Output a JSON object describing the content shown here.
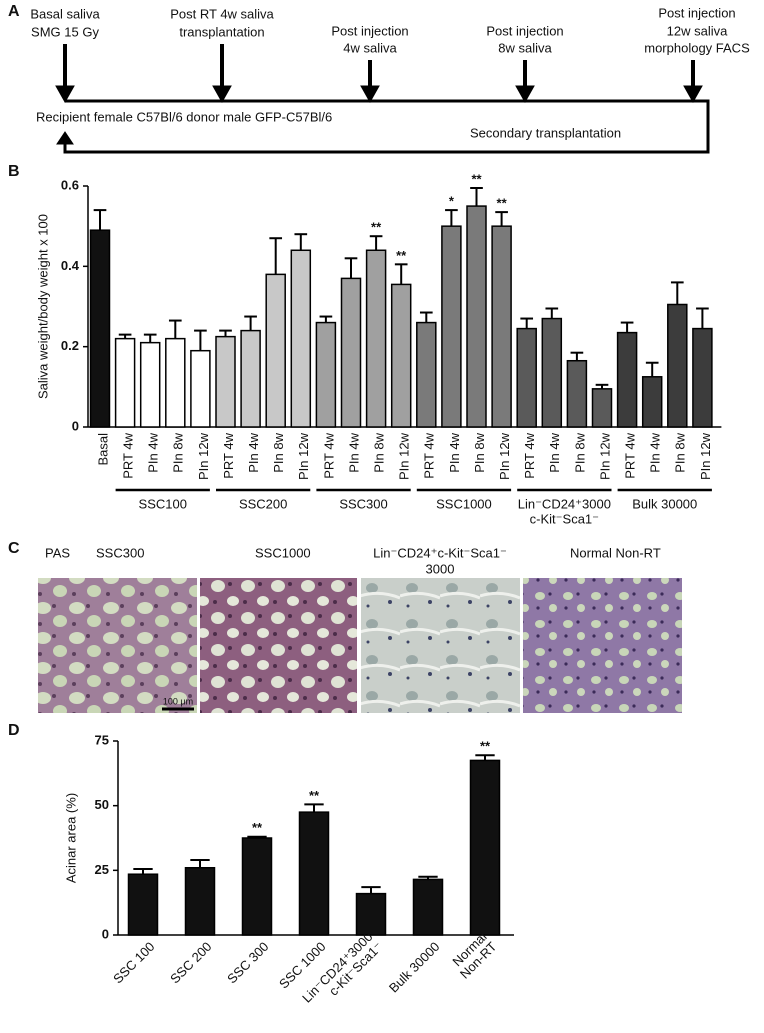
{
  "panel_labels": [
    "A",
    "B",
    "C",
    "D"
  ],
  "timeline": {
    "steps": [
      [
        "Basal saliva",
        "SMG 15 Gy"
      ],
      [
        "Post RT 4w saliva",
        "transplantation"
      ],
      [
        "Post injection",
        "4w saliva"
      ],
      [
        "Post injection",
        "8w saliva"
      ],
      [
        "Post injection",
        "12w saliva",
        "morphology FACS"
      ]
    ],
    "recipient": "Recipient female C57Bl/6 donor male GFP-C57Bl/6",
    "secondary": "Secondary transplantation"
  },
  "histology": {
    "stain": "PAS",
    "titles": [
      [
        "SSC300"
      ],
      [
        "SSC1000"
      ],
      [
        "Lin⁻CD24⁺c-Kit⁻Sca1⁻",
        "3000"
      ],
      [
        "Normal Non-RT"
      ]
    ],
    "scale_bar": "100 μm"
  },
  "chart_data": [
    {
      "type": "bar",
      "ylabel": "Saliva weight/body weight x 100",
      "ylim": [
        0,
        0.6
      ],
      "yticks": [
        0,
        0.2,
        0.4,
        0.6
      ],
      "groups": [
        {
          "name": null,
          "color": "#111111",
          "categories": [
            "Basal"
          ],
          "values": [
            0.49
          ],
          "errors": [
            0.05
          ],
          "significance": [
            null
          ]
        },
        {
          "name": [
            "SSC100"
          ],
          "color": "#ffffff",
          "categories": [
            "PRT 4w",
            "PIn 4w",
            "PIn 8w",
            "PIn 12w"
          ],
          "values": [
            0.22,
            0.21,
            0.22,
            0.19
          ],
          "errors": [
            0.01,
            0.02,
            0.045,
            0.05
          ],
          "significance": [
            null,
            null,
            null,
            null
          ]
        },
        {
          "name": [
            "SSC200"
          ],
          "color": "#c8c8c8",
          "categories": [
            "PRT 4w",
            "PIn 4w",
            "PIn 8w",
            "PIn 12w"
          ],
          "values": [
            0.225,
            0.24,
            0.38,
            0.44
          ],
          "errors": [
            0.015,
            0.035,
            0.09,
            0.04
          ],
          "significance": [
            null,
            null,
            null,
            null
          ]
        },
        {
          "name": [
            "SSC300"
          ],
          "color": "#a0a0a0",
          "categories": [
            "PRT 4w",
            "PIn 4w",
            "PIn 8w",
            "PIn 12w"
          ],
          "values": [
            0.26,
            0.37,
            0.44,
            0.355
          ],
          "errors": [
            0.015,
            0.05,
            0.035,
            0.05
          ],
          "significance": [
            null,
            null,
            "**",
            "**"
          ]
        },
        {
          "name": [
            "SSC1000"
          ],
          "color": "#7a7a7a",
          "categories": [
            "PRT 4w",
            "PIn 4w",
            "PIn 8w",
            "PIn 12w"
          ],
          "values": [
            0.26,
            0.5,
            0.55,
            0.5
          ],
          "errors": [
            0.025,
            0.04,
            0.045,
            0.035
          ],
          "significance": [
            null,
            "*",
            "**",
            "**"
          ]
        },
        {
          "name": [
            "Lin⁻CD24⁺3000",
            "c-Kit⁻Sca1⁻"
          ],
          "color": "#5a5a5a",
          "categories": [
            "PRT 4w",
            "PIn 4w",
            "PIn 8w",
            "PIn 12w"
          ],
          "values": [
            0.245,
            0.27,
            0.165,
            0.095
          ],
          "errors": [
            0.025,
            0.025,
            0.02,
            0.01
          ],
          "significance": [
            null,
            null,
            null,
            null
          ]
        },
        {
          "name": [
            "Bulk 30000"
          ],
          "color": "#3c3c3c",
          "categories": [
            "PRT 4w",
            "PIn 4w",
            "PIn 8w",
            "PIn 12w"
          ],
          "values": [
            0.235,
            0.125,
            0.305,
            0.245
          ],
          "errors": [
            0.025,
            0.035,
            0.055,
            0.05
          ],
          "significance": [
            null,
            null,
            null,
            null
          ]
        }
      ]
    },
    {
      "type": "bar",
      "ylabel": "Acinar area (%)",
      "ylim": [
        0,
        75
      ],
      "yticks": [
        0,
        25,
        50,
        75
      ],
      "color": "#111111",
      "categories": [
        [
          "SSC 100"
        ],
        [
          "SSC 200"
        ],
        [
          "SSC 300"
        ],
        [
          "SSC 1000"
        ],
        [
          "Lin⁻CD24⁺3000",
          "c-Kit⁻Sca1⁻"
        ],
        [
          "Bulk 30000"
        ],
        [
          "Normal",
          "Non-RT"
        ]
      ],
      "values": [
        23.5,
        26,
        37.5,
        47.5,
        16,
        21.5,
        67.5
      ],
      "errors": [
        2,
        3,
        0.5,
        3,
        2.5,
        1,
        2
      ],
      "significance": [
        null,
        null,
        "**",
        "**",
        null,
        null,
        "**"
      ]
    }
  ]
}
